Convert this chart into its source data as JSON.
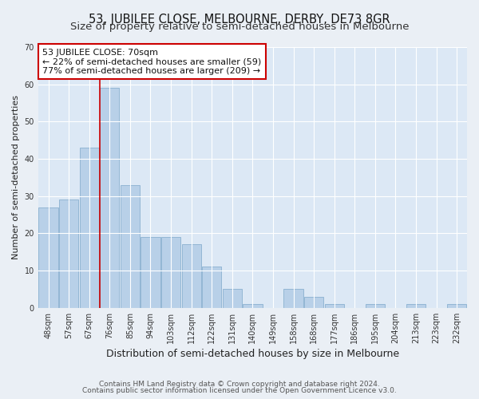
{
  "title": "53, JUBILEE CLOSE, MELBOURNE, DERBY, DE73 8GR",
  "subtitle": "Size of property relative to semi-detached houses in Melbourne",
  "xlabel": "Distribution of semi-detached houses by size in Melbourne",
  "ylabel": "Number of semi-detached properties",
  "bar_labels": [
    "48sqm",
    "57sqm",
    "67sqm",
    "76sqm",
    "85sqm",
    "94sqm",
    "103sqm",
    "112sqm",
    "122sqm",
    "131sqm",
    "140sqm",
    "149sqm",
    "158sqm",
    "168sqm",
    "177sqm",
    "186sqm",
    "195sqm",
    "204sqm",
    "213sqm",
    "223sqm",
    "232sqm"
  ],
  "bar_values": [
    27,
    29,
    43,
    59,
    33,
    19,
    19,
    17,
    11,
    5,
    1,
    0,
    5,
    3,
    1,
    0,
    1,
    0,
    1,
    0,
    1
  ],
  "bar_color": "#b8d0e8",
  "bar_edge_color": "#8ab0d0",
  "vline_x_index": 2.5,
  "vline_color": "#cc0000",
  "annotation_text": "53 JUBILEE CLOSE: 70sqm\n← 22% of semi-detached houses are smaller (59)\n77% of semi-detached houses are larger (209) →",
  "annotation_box_color": "#ffffff",
  "annotation_box_edge_color": "#cc0000",
  "ylim": [
    0,
    70
  ],
  "yticks": [
    0,
    10,
    20,
    30,
    40,
    50,
    60,
    70
  ],
  "bg_color": "#eaeff5",
  "plot_bg_color": "#dce8f5",
  "grid_color": "#ffffff",
  "footer1": "Contains HM Land Registry data © Crown copyright and database right 2024.",
  "footer2": "Contains public sector information licensed under the Open Government Licence v3.0.",
  "title_fontsize": 10.5,
  "subtitle_fontsize": 9.5,
  "xlabel_fontsize": 9,
  "ylabel_fontsize": 8,
  "tick_fontsize": 7,
  "annotation_fontsize": 8,
  "footer_fontsize": 6.5,
  "figsize": [
    6.0,
    5.0
  ],
  "dpi": 100
}
